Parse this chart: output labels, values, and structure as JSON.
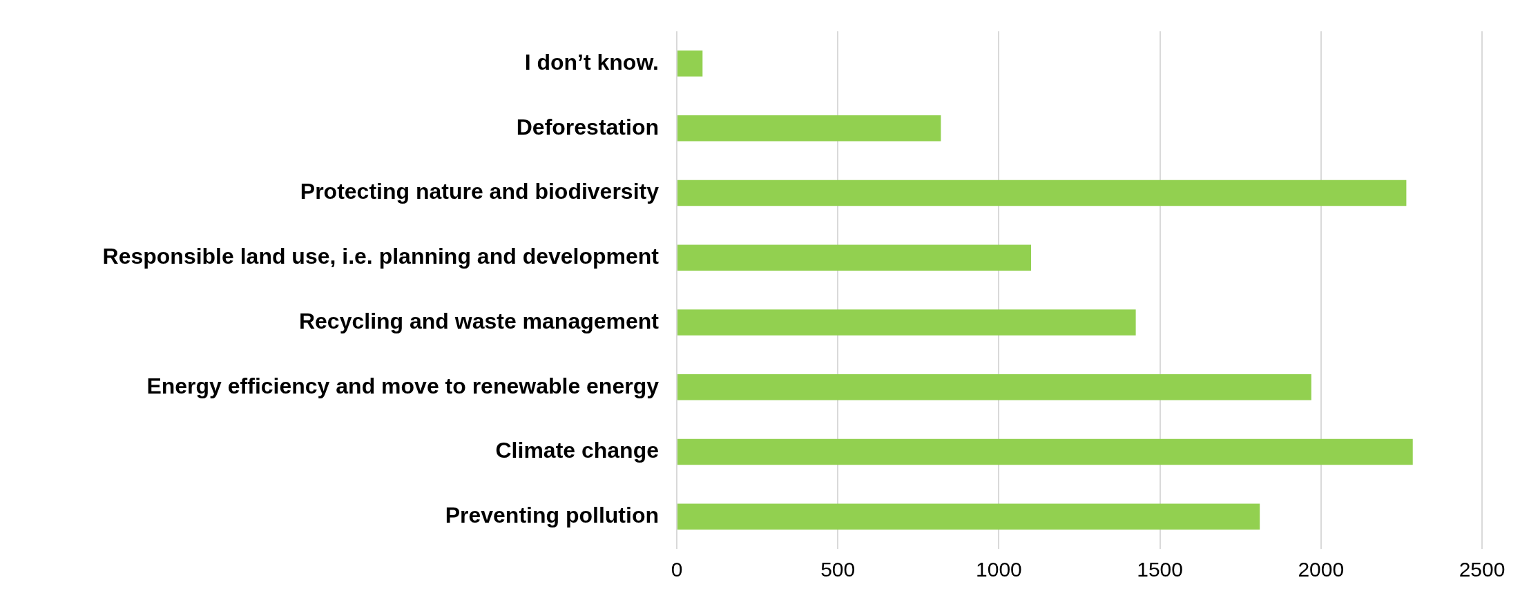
{
  "chart_data": {
    "type": "bar",
    "orientation": "horizontal",
    "categories": [
      "I don’t know.",
      "Deforestation",
      "Protecting nature and biodiversity",
      "Responsible land use, i.e. planning and development",
      "Recycling and waste management",
      "Energy efficiency and move to renewable energy",
      "Climate change",
      "Preventing pollution"
    ],
    "values": [
      80,
      820,
      2265,
      1100,
      1425,
      1970,
      2285,
      1810
    ],
    "color": "#92d050",
    "xlim": [
      0,
      2500
    ],
    "xticks": [
      0,
      500,
      1000,
      1500,
      2000,
      2500
    ],
    "grid": "x",
    "legend": false
  }
}
